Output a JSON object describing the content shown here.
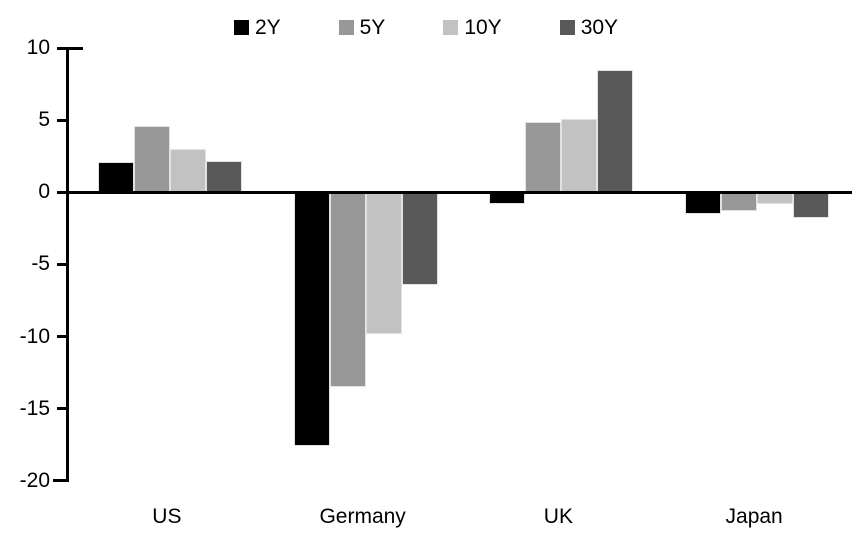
{
  "chart_data": {
    "type": "bar",
    "title": "",
    "categories": [
      "US",
      "Germany",
      "UK",
      "Japan"
    ],
    "series": [
      {
        "name": "2Y",
        "color": "#000000",
        "values": [
          2.1,
          -17.6,
          -0.8,
          -1.5
        ]
      },
      {
        "name": "5Y",
        "color": "#989898",
        "values": [
          4.6,
          -13.5,
          4.9,
          -1.3
        ]
      },
      {
        "name": "10Y",
        "color": "#c2c2c2",
        "values": [
          3.0,
          -9.8,
          5.1,
          -0.8
        ]
      },
      {
        "name": "30Y",
        "color": "#595959",
        "values": [
          2.2,
          -6.4,
          8.5,
          -1.8
        ]
      }
    ],
    "ylim": [
      -20,
      10
    ],
    "yticks": [
      10,
      5,
      0,
      -5,
      -10,
      -15,
      -20
    ],
    "xlabel": "",
    "ylabel": "",
    "grid": false,
    "legend_position": "top",
    "axis_color": "#000000",
    "background": "#ffffff"
  }
}
